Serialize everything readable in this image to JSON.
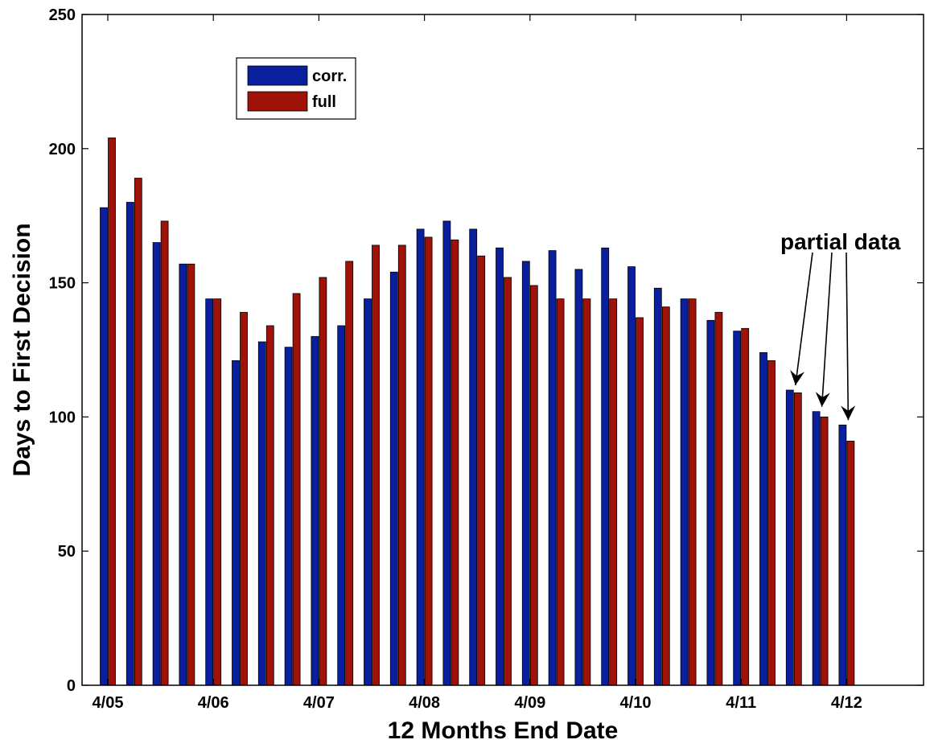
{
  "chart_data": {
    "type": "bar",
    "xlabel": "12 Months End Date",
    "ylabel": "Days to First Decision",
    "ylim": [
      0,
      250
    ],
    "y_ticks": [
      0,
      50,
      100,
      150,
      200,
      250
    ],
    "x_tick_labels": [
      {
        "label": "4/05",
        "index": 0
      },
      {
        "label": "4/06",
        "index": 4
      },
      {
        "label": "4/07",
        "index": 8
      },
      {
        "label": "4/08",
        "index": 12
      },
      {
        "label": "4/09",
        "index": 16
      },
      {
        "label": "4/10",
        "index": 20
      },
      {
        "label": "4/11",
        "index": 24
      },
      {
        "label": "4/12",
        "index": 28
      }
    ],
    "grid": false,
    "legend_position": "top-left",
    "series": [
      {
        "name": "corr.",
        "color": "#0a1f9e",
        "values": [
          178,
          180,
          165,
          157,
          144,
          121,
          128,
          126,
          130,
          134,
          144,
          154,
          170,
          173,
          170,
          163,
          158,
          162,
          155,
          163,
          156,
          148,
          144,
          136,
          132,
          124,
          110,
          102,
          97
        ]
      },
      {
        "name": "full",
        "color": "#9e1208",
        "values": [
          204,
          189,
          173,
          157,
          144,
          139,
          134,
          146,
          152,
          158,
          164,
          164,
          167,
          166,
          160,
          152,
          149,
          144,
          144,
          144,
          137,
          141,
          144,
          139,
          133,
          121,
          109,
          100,
          91
        ]
      }
    ],
    "annotation": {
      "text": "partial data",
      "arrow_targets": [
        26,
        27,
        28
      ]
    }
  }
}
